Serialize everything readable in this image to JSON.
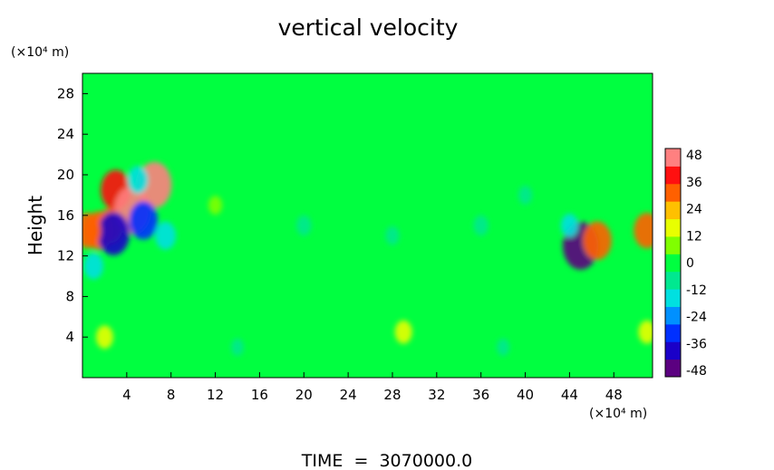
{
  "chart_data": {
    "type": "heatmap",
    "title": "vertical velocity",
    "xlabel": "",
    "ylabel": "Height",
    "x_unit_label": "(×10⁴ m)",
    "y_unit_label": "(×10⁴ m)",
    "footer": "TIME  =  3070000.0",
    "xlim": [
      0,
      51.5
    ],
    "ylim": [
      0,
      30
    ],
    "x_ticks": [
      4,
      8,
      12,
      16,
      20,
      24,
      28,
      32,
      36,
      40,
      44,
      48
    ],
    "y_ticks": [
      4,
      8,
      12,
      16,
      20,
      24,
      28
    ],
    "colorbar": {
      "min": -48,
      "max": 48,
      "ticks": [
        48,
        36,
        24,
        12,
        0,
        -12,
        -24,
        -36,
        -48
      ],
      "colors": [
        "#5b0080",
        "#1a00c8",
        "#0030ff",
        "#0090ff",
        "#00e0e0",
        "#00e890",
        "#00ff40",
        "#80ff00",
        "#e8ff00",
        "#ffc000",
        "#ff6000",
        "#ff1010",
        "#ff8080"
      ]
    },
    "background_value": 0,
    "features": [
      {
        "x": 1.5,
        "y": 14.5,
        "value": 34
      },
      {
        "x": 2.5,
        "y": 15,
        "value": 30
      },
      {
        "x": 3,
        "y": 18.5,
        "value": 36
      },
      {
        "x": 4.5,
        "y": 16.5,
        "value": 46
      },
      {
        "x": 6.5,
        "y": 19,
        "value": 44
      },
      {
        "x": 2.8,
        "y": 14.2,
        "value": -40
      },
      {
        "x": 5.5,
        "y": 15.5,
        "value": -34
      },
      {
        "x": 5,
        "y": 19.5,
        "value": -20
      },
      {
        "x": 1,
        "y": 11,
        "value": -18
      },
      {
        "x": 7.5,
        "y": 14,
        "value": -20
      },
      {
        "x": 0.5,
        "y": 14.5,
        "value": 30
      },
      {
        "x": 45,
        "y": 13,
        "value": -46
      },
      {
        "x": 46.5,
        "y": 13.5,
        "value": 34
      },
      {
        "x": 51,
        "y": 14.5,
        "value": 30
      },
      {
        "x": 44,
        "y": 15,
        "value": -14
      },
      {
        "x": 2,
        "y": 4,
        "value": 14
      },
      {
        "x": 29,
        "y": 4.5,
        "value": 14
      },
      {
        "x": 51,
        "y": 4.5,
        "value": 14
      },
      {
        "x": 14,
        "y": 3,
        "value": -6
      },
      {
        "x": 38,
        "y": 3,
        "value": -6
      },
      {
        "x": 20,
        "y": 15,
        "value": -10
      },
      {
        "x": 28,
        "y": 14,
        "value": -8
      },
      {
        "x": 36,
        "y": 15,
        "value": -10
      },
      {
        "x": 40,
        "y": 18,
        "value": -8
      },
      {
        "x": 12,
        "y": 17,
        "value": 8
      }
    ]
  }
}
